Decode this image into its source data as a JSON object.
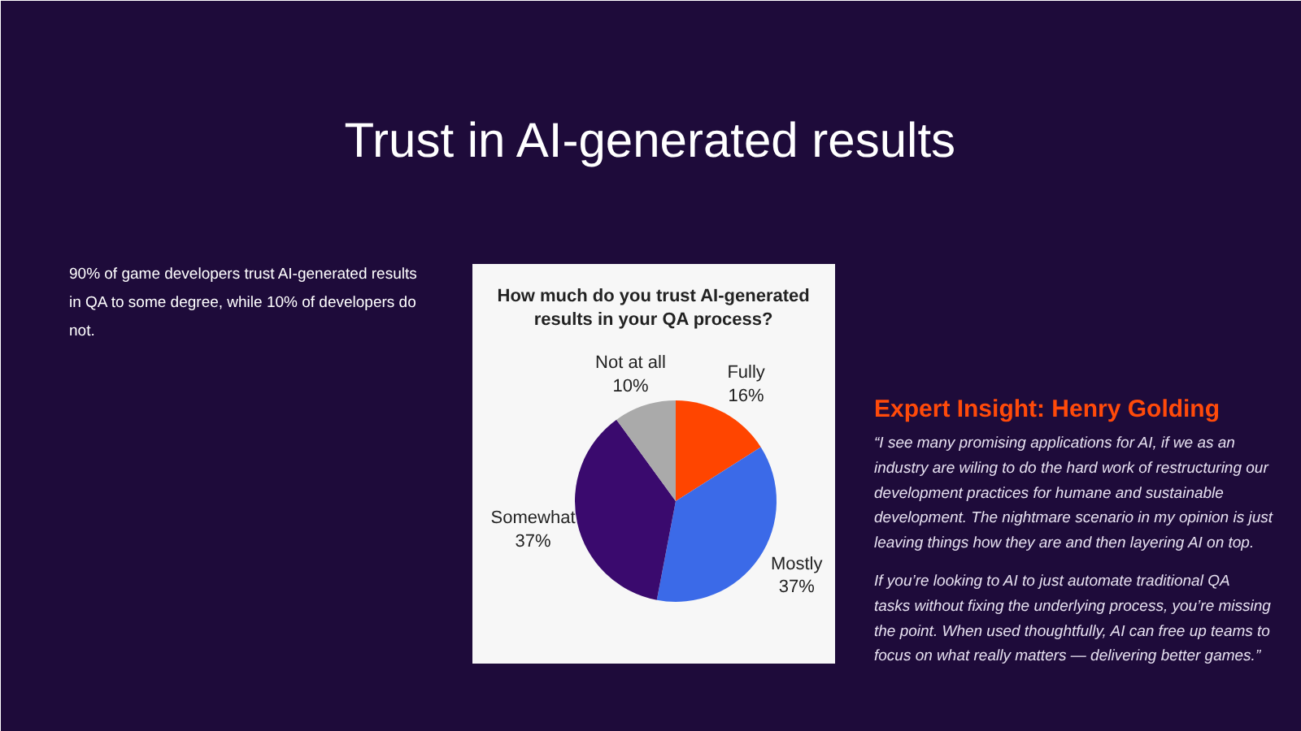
{
  "chart_data": {
    "type": "pie",
    "title": "Trust in AI-generated results",
    "subtitle": "How much do you trust AI-generated results in your QA process?",
    "categories": [
      "Fully",
      "Mostly",
      "Somewhat",
      "Not at all"
    ],
    "values": [
      16,
      37,
      37,
      10
    ],
    "colors": [
      "#ff4500",
      "#3b6ae8",
      "#3a0a6e",
      "#aaaaaa"
    ],
    "value_labels": [
      "16%",
      "37%",
      "37%",
      "10%"
    ],
    "annotations": [
      "90% of game developers trust AI-generated results in QA to some degree, while 10% of developers do not.",
      "Expert Insight: Henry Golding",
      "“I see many promising applications for AI, if we as an industry are wiling to do the hard work of restructuring our development practices for humane and sustainable development. The nightmare scenario in my opinion is just leaving things how they are and then layering AI on top.",
      "If you’re looking to AI to just automate traditional QA tasks without fixing the underlying process, you’re missing the point. When used thoughtfully, AI can free up teams to focus on what really matters — delivering better games.”"
    ]
  }
}
